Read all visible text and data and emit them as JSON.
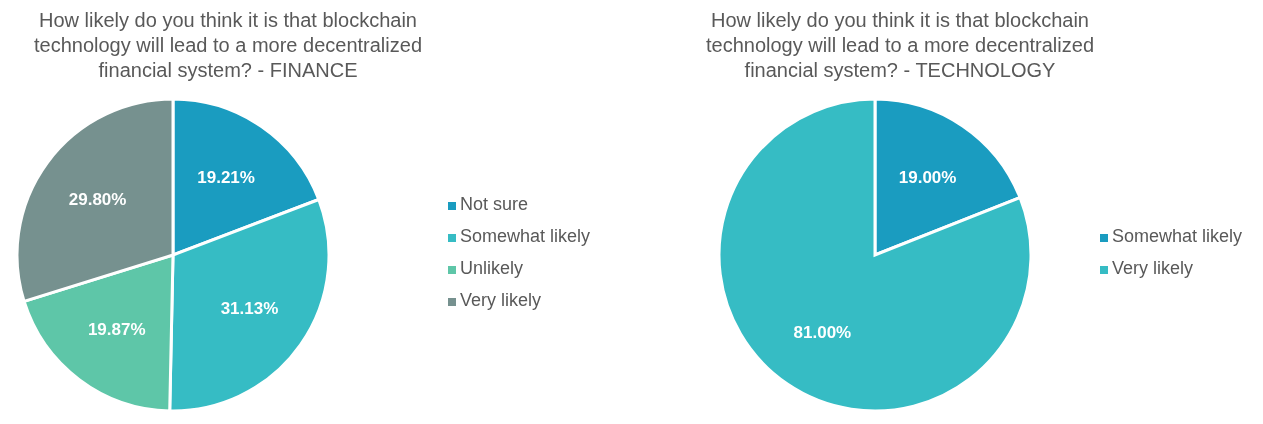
{
  "chart_data": [
    {
      "type": "pie",
      "title": "How likely do you think it is that blockchain technology will lead to a more decentralized financial system? - FINANCE",
      "categories": [
        "Not sure",
        "Somewhat likely",
        "Unlikely",
        "Very likely"
      ],
      "values": [
        19.21,
        31.13,
        19.87,
        29.8
      ],
      "value_labels": [
        "19.21%",
        "31.13%",
        "19.87%",
        "29.80%"
      ],
      "colors": [
        "#1a9cc0",
        "#36bcc4",
        "#5ec6a8",
        "#76918f"
      ],
      "legend": "right"
    },
    {
      "type": "pie",
      "title": "How likely do you think it is that blockchain technology will lead to a more decentralized financial system? - TECHNOLOGY",
      "categories": [
        "Somewhat likely",
        "Very likely"
      ],
      "values": [
        19.0,
        81.0
      ],
      "value_labels": [
        "19.00%",
        "81.00%"
      ],
      "colors": [
        "#1a9cc0",
        "#36bcc4"
      ],
      "legend": "right"
    }
  ]
}
